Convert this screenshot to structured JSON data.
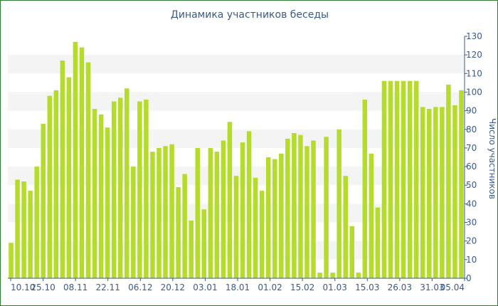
{
  "chart_data": {
    "type": "bar",
    "title": "Динамика участников беседы",
    "xlabel": "",
    "ylabel": "Число участников",
    "ylim": [
      0,
      130
    ],
    "y_ticks": [
      0,
      10,
      20,
      30,
      40,
      50,
      60,
      70,
      80,
      90,
      100,
      110,
      120,
      130
    ],
    "x_tick_labels": [
      "10.10",
      "25.10",
      "08.11",
      "22.11",
      "06.12",
      "20.12",
      "03.01",
      "18.01",
      "01.02",
      "15.02",
      "01.03",
      "15.03",
      "26.03",
      "31.03",
      "05.04"
    ],
    "color": "#b5dc2b",
    "grid": "alternating horizontal bands",
    "y_axis_position": "right",
    "values": [
      19,
      53,
      52,
      47,
      60,
      83,
      98,
      101,
      117,
      108,
      127,
      124,
      116,
      91,
      88,
      81,
      95,
      97,
      102,
      60,
      95,
      96,
      68,
      70,
      71,
      72,
      49,
      56,
      31,
      70,
      37,
      70,
      68,
      74,
      84,
      55,
      73,
      79,
      54,
      47,
      65,
      64,
      67,
      75,
      78,
      77,
      71,
      74,
      3,
      76,
      3,
      80,
      55,
      28,
      3,
      96,
      67,
      38,
      106,
      106,
      106,
      106,
      106,
      106,
      92,
      91,
      92,
      92,
      104,
      93,
      101
    ]
  }
}
